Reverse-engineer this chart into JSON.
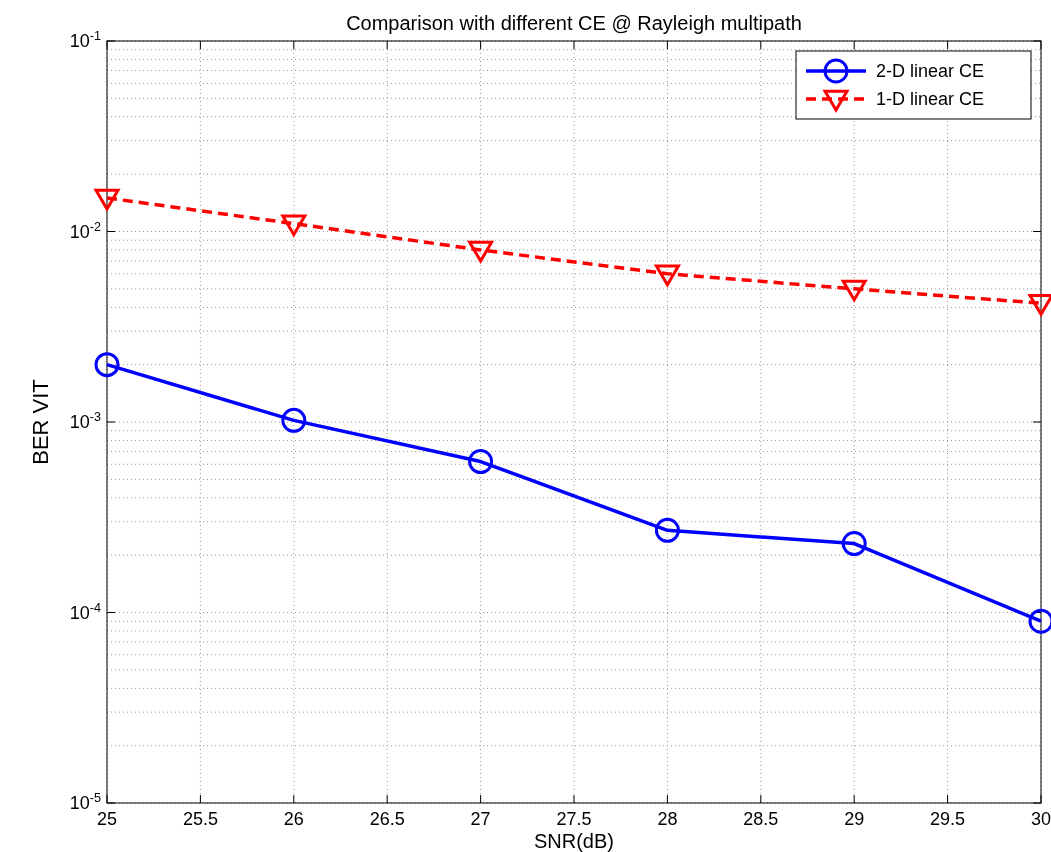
{
  "chart_data": {
    "type": "line",
    "title": "Comparison with different CE @ Rayleigh multipath",
    "xlabel": "SNR(dB)",
    "ylabel": "BER VIT",
    "x": [
      25,
      26,
      27,
      28,
      29,
      30
    ],
    "series": [
      {
        "name": "2-D linear CE",
        "color": "#0000ff",
        "values": [
          0.002,
          0.00102,
          0.00062,
          0.00027,
          0.00023,
          9e-05
        ],
        "marker": "circle",
        "line_style": "solid"
      },
      {
        "name": "1-D linear CE",
        "color": "#ff0000",
        "values": [
          0.015,
          0.011,
          0.008,
          0.006,
          0.005,
          0.0042
        ],
        "marker": "triangle",
        "line_style": "dashed"
      }
    ],
    "xlim": [
      25,
      30
    ],
    "xticks": [
      25,
      25.5,
      26,
      26.5,
      27,
      27.5,
      28,
      28.5,
      29,
      29.5,
      30
    ],
    "ylim": [
      1e-05,
      0.1
    ],
    "yticks": [
      {
        "value": 1e-05,
        "label": "10$^{-5}$"
      },
      {
        "value": 0.0001,
        "label": "10$^{-4}$"
      },
      {
        "value": 0.001,
        "label": "10$^{-3}$"
      },
      {
        "value": 0.01,
        "label": "10$^{-2}$"
      },
      {
        "value": 0.1,
        "label": "10$^{-1}$"
      }
    ],
    "log": "y",
    "grid": true,
    "legend": "top right"
  }
}
